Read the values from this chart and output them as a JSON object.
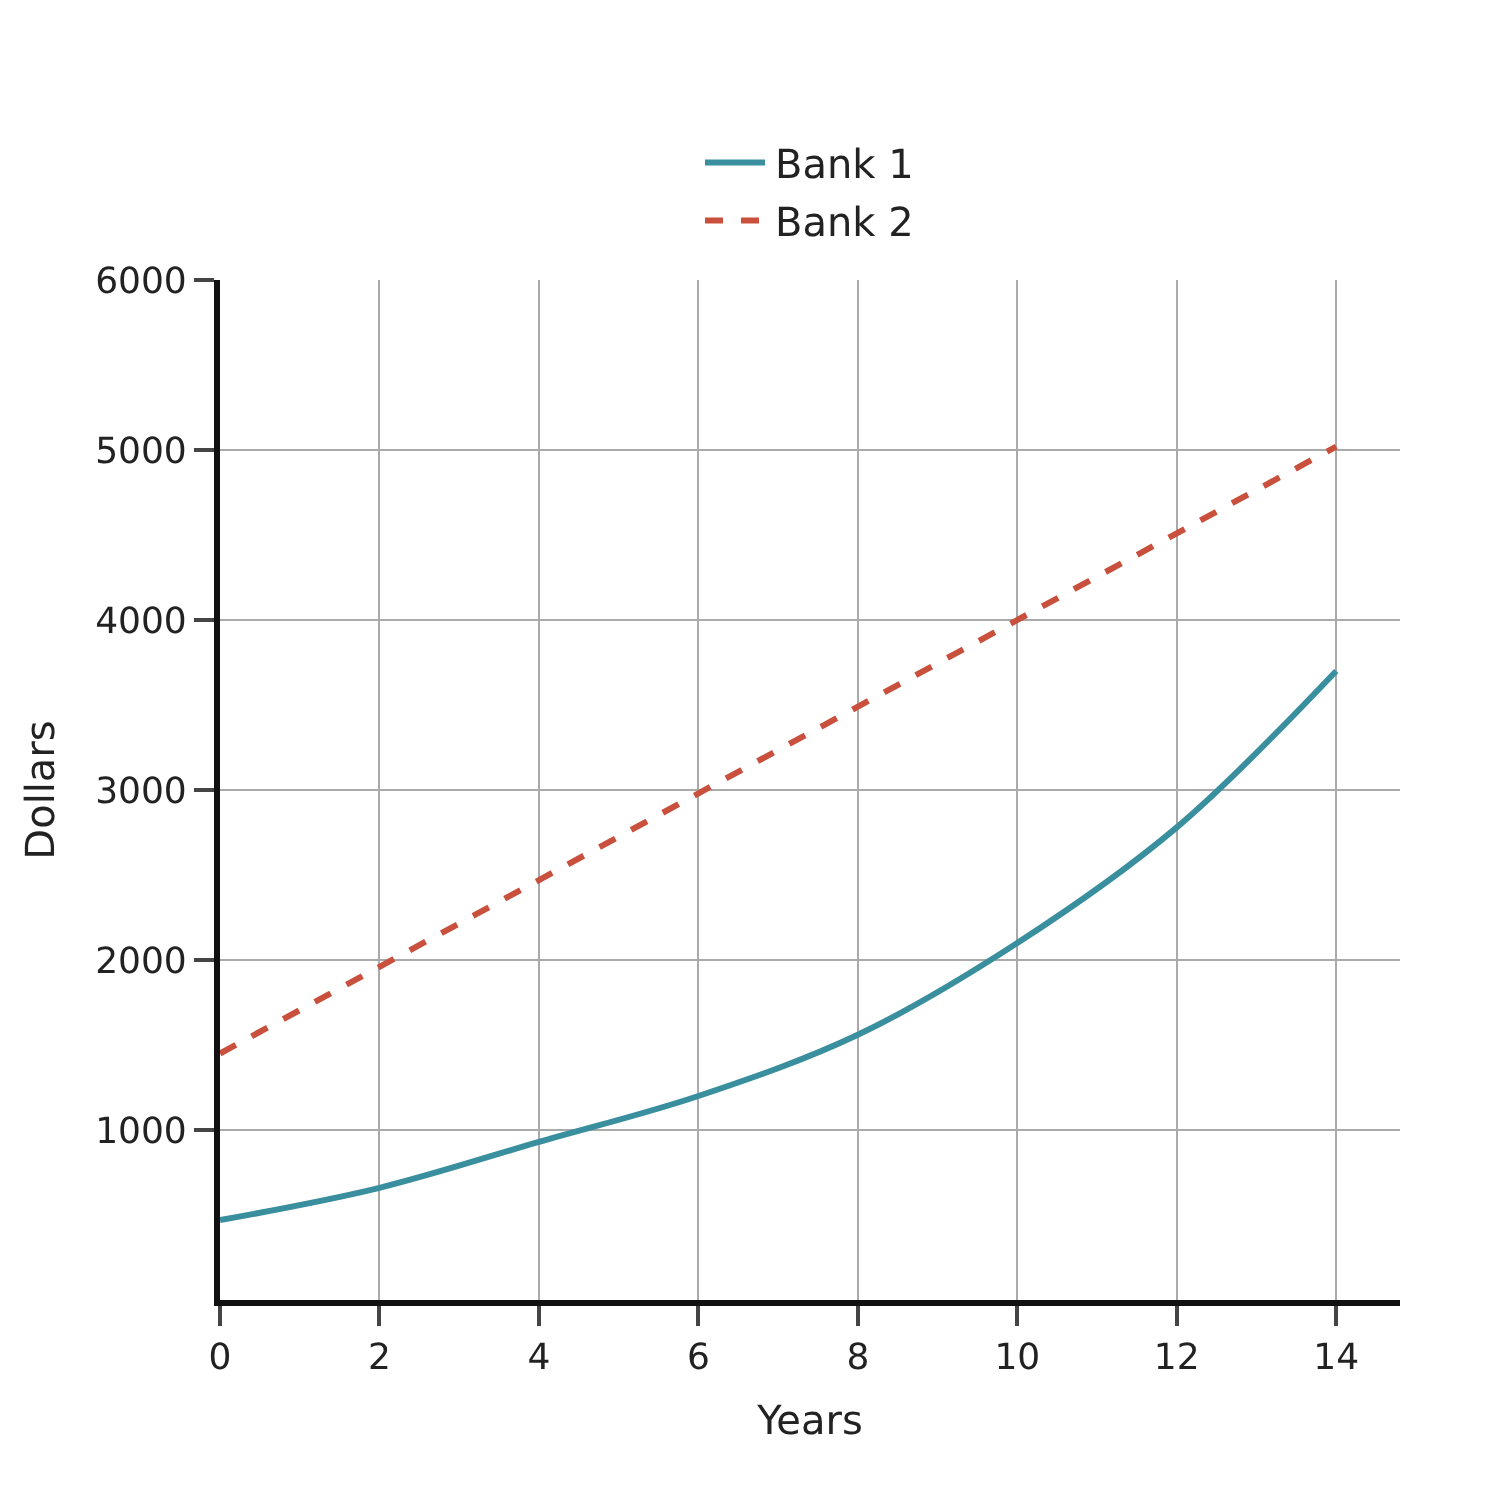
{
  "chart_data": {
    "type": "line",
    "xlabel": "Years",
    "ylabel": "Dollars",
    "x": [
      0,
      2,
      4,
      6,
      8,
      10,
      12,
      14
    ],
    "series": [
      {
        "name": "Bank 1",
        "color": "#3a8f9e",
        "line_style": "solid",
        "values": [
          470,
          660,
          930,
          1200,
          1560,
          2100,
          2780,
          3700
        ]
      },
      {
        "name": "Bank 2",
        "color": "#c8503c",
        "line_style": "dashed",
        "x": [
          0,
          14
        ],
        "values": [
          1450,
          5020
        ]
      }
    ],
    "xlim": [
      0,
      14.8
    ],
    "xticks": [
      0,
      2,
      4,
      6,
      8,
      10,
      12,
      14
    ],
    "ylim": [
      0,
      6000
    ],
    "yticks": [
      1000,
      2000,
      3000,
      4000,
      5000,
      6000
    ],
    "grid": true,
    "legend": "top",
    "marker": "none"
  }
}
